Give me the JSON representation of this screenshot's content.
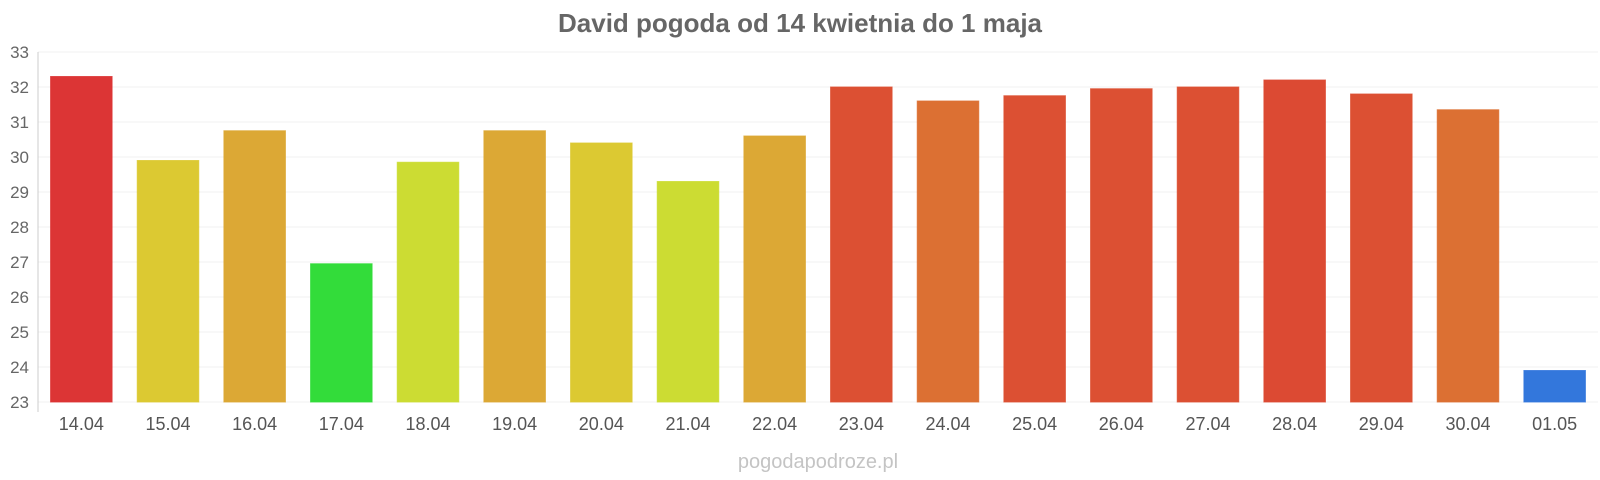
{
  "chart_data": {
    "type": "bar",
    "title": "David pogoda od 14 kwietnia do 1 maja",
    "xlabel": "",
    "ylabel": "",
    "ylim": [
      23,
      33
    ],
    "yticks": [
      "23",
      "24",
      "25",
      "26",
      "27",
      "28",
      "29",
      "30",
      "31",
      "32",
      "33"
    ],
    "grid": true,
    "legend": "none",
    "categories": [
      "14.04",
      "15.04",
      "16.04",
      "17.04",
      "18.04",
      "19.04",
      "20.04",
      "21.04",
      "22.04",
      "23.04",
      "24.04",
      "25.04",
      "26.04",
      "27.04",
      "28.04",
      "29.04",
      "30.04",
      "01.05"
    ],
    "values": [
      32.3,
      29.9,
      30.75,
      26.95,
      29.85,
      30.75,
      30.4,
      29.3,
      30.6,
      32.0,
      31.6,
      31.75,
      31.95,
      32.0,
      32.2,
      31.8,
      31.35,
      23.9
    ],
    "colors": [
      "#dc3535",
      "#dcc932",
      "#dca835",
      "#33dc3a",
      "#ccdc33",
      "#dca835",
      "#dcc932",
      "#ccdc33",
      "#dca835",
      "#dc5033",
      "#dc7033",
      "#dc5033",
      "#dc5033",
      "#dc5033",
      "#dc4a33",
      "#dc5033",
      "#dc7033",
      "#3377dc"
    ]
  },
  "footer": {
    "credit": "pogodapodroze.pl"
  }
}
